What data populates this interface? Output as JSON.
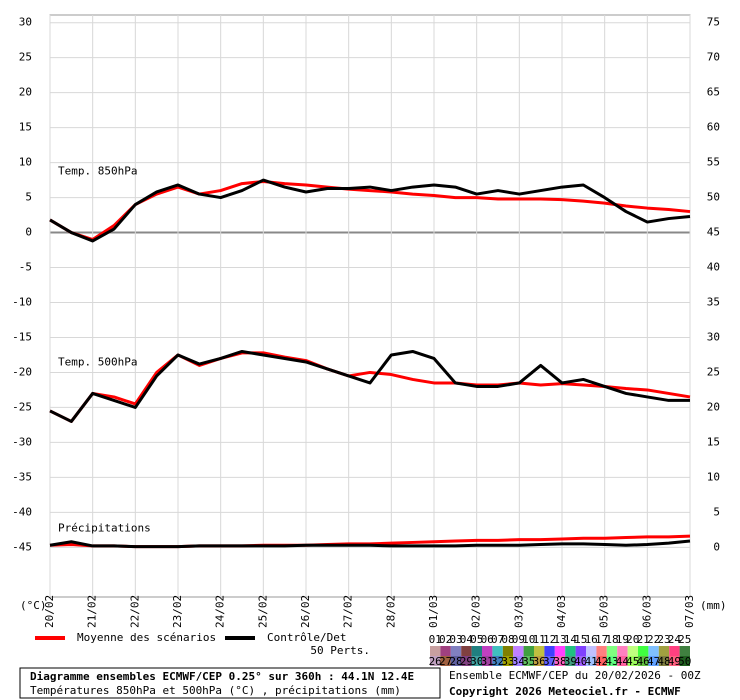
{
  "chart_data": {
    "type": "line",
    "categories": [
      "20/02",
      null,
      "21/02",
      null,
      "22/02",
      null,
      "23/02",
      null,
      "24/02",
      null,
      "25/02",
      null,
      "26/02",
      null,
      "27/02",
      null,
      "28/02",
      null,
      "01/03",
      null,
      "02/03",
      null,
      "03/03",
      null,
      "04/03",
      null,
      "05/03",
      null,
      "06/03",
      null,
      "07/03"
    ],
    "ylim": [
      -52.1,
      31.1
    ],
    "yticks": [
      30,
      25,
      20,
      15,
      10,
      5,
      0,
      -5,
      -10,
      -15,
      -20,
      -25,
      -30,
      -35,
      -40,
      -45
    ],
    "y2lim": [
      -7.1,
      76.1
    ],
    "y2ticks": [
      75,
      70,
      65,
      60,
      55,
      50,
      45,
      40,
      35,
      30,
      25,
      20,
      15,
      10,
      5,
      0
    ],
    "xlabel": "(°C)",
    "y2label": "(mm)",
    "grid": true,
    "zero_line": 0,
    "annotations": [
      "Temp. 850hPa",
      "Temp. 500hPa",
      "Précipitations"
    ],
    "series": [
      {
        "name": "Moyenne des scénarios",
        "color": "#ff0000",
        "values": [
          1.8,
          0,
          -1,
          1,
          4,
          5.5,
          6.5,
          5.5,
          6,
          7,
          7.3,
          7,
          6.8,
          6.5,
          6.2,
          6,
          5.8,
          5.5,
          5.3,
          5,
          5,
          4.8,
          4.8,
          4.8,
          4.7,
          4.5,
          4.2,
          3.8,
          3.5,
          3.3,
          3
        ]
      },
      {
        "name": "Contrôle/Det",
        "color": "#000000",
        "values": [
          1.8,
          0,
          -1.2,
          0.5,
          4,
          5.8,
          6.8,
          5.5,
          5,
          6,
          7.5,
          6.5,
          5.8,
          6.3,
          6.3,
          6.5,
          6,
          6.5,
          6.8,
          6.5,
          5.5,
          6,
          5.5,
          6,
          6.5,
          6.8,
          5,
          3,
          1.5,
          2,
          2.3
        ]
      },
      {
        "color": "#ff0000",
        "values": [
          -25.5,
          -27,
          -23,
          -23.5,
          -24.5,
          -20,
          -17.5,
          -19,
          -18,
          -17.2,
          -17.2,
          -17.8,
          -18.3,
          -19.5,
          -20.5,
          -20,
          -20.3,
          -21,
          -21.5,
          -21.5,
          -21.8,
          -21.8,
          -21.5,
          -21.8,
          -21.6,
          -21.8,
          -22,
          -22.3,
          -22.5,
          -23,
          -23.5
        ]
      },
      {
        "color": "#000000",
        "values": [
          -25.5,
          -27,
          -23,
          -24,
          -25,
          -20.5,
          -17.5,
          -18.8,
          -18,
          -17,
          -17.5,
          -18,
          -18.5,
          -19.5,
          -20.5,
          -21.5,
          -17.5,
          -17,
          -18,
          -21.5,
          -22,
          -22,
          -21.5,
          -19,
          -21.5,
          -21,
          -22,
          -23,
          -23.5,
          -24,
          -24
        ]
      },
      {
        "color": "#ff0000",
        "axis": "y2",
        "values": [
          0.3,
          0.4,
          0.2,
          0.2,
          0.1,
          0.1,
          0.1,
          0.2,
          0.2,
          0.2,
          0.3,
          0.3,
          0.3,
          0.4,
          0.5,
          0.5,
          0.6,
          0.7,
          0.8,
          0.9,
          1,
          1,
          1.1,
          1.1,
          1.2,
          1.3,
          1.3,
          1.4,
          1.5,
          1.5,
          1.6
        ]
      },
      {
        "color": "#000000",
        "axis": "y2",
        "values": [
          0.3,
          0.8,
          0.2,
          0.2,
          0.1,
          0.1,
          0.1,
          0.2,
          0.2,
          0.2,
          0.2,
          0.2,
          0.3,
          0.3,
          0.3,
          0.3,
          0.2,
          0.2,
          0.2,
          0.2,
          0.3,
          0.3,
          0.3,
          0.4,
          0.5,
          0.5,
          0.4,
          0.3,
          0.4,
          0.6,
          0.9
        ]
      }
    ],
    "perturbations": {
      "name": "50 Perts.",
      "labels": [
        "01",
        "02",
        "03",
        "04",
        "05",
        "06",
        "07",
        "08",
        "09",
        "10",
        "11",
        "12",
        "13",
        "14",
        "15",
        "16",
        "17",
        "18",
        "19",
        "20",
        "21",
        "22",
        "23",
        "24",
        "25",
        "26",
        "27",
        "28",
        "29",
        "30",
        "31",
        "32",
        "33",
        "34",
        "35",
        "36",
        "37",
        "38",
        "39",
        "40",
        "41",
        "42",
        "43",
        "44",
        "45",
        "46",
        "47",
        "48",
        "49",
        "50"
      ],
      "colors": [
        "#c8a0a0",
        "#a04080",
        "#8080c0",
        "#804040",
        "#208080",
        "#c040c0",
        "#40c0c0",
        "#808000",
        "#c080ff",
        "#40a040",
        "#c0c040",
        "#4040ff",
        "#ff40ff",
        "#20c080",
        "#8040ff",
        "#c0c0ff",
        "#ff8080",
        "#80ff80",
        "#ff80c0",
        "#c0ff80",
        "#40ff40",
        "#80c0ff",
        "#a0a040",
        "#ff4080",
        "#408040",
        "#c0a0c0",
        "#a06040",
        "#6060a0",
        "#804080",
        "#40a0a0",
        "#a040a0",
        "#4080c0",
        "#a0a000",
        "#a080ff",
        "#60c060",
        "#c0a040",
        "#6060ff",
        "#ff60c0",
        "#40a080",
        "#a060ff",
        "#a0c0ff",
        "#ff6060",
        "#60ff80",
        "#ff60a0",
        "#a0ff60",
        "#60c040",
        "#60a0ff",
        "#808040",
        "#ff6080",
        "#206020"
      ]
    },
    "footer": {
      "title": "Diagramme ensembles ECMWF/CEP 0.25° sur 360h : 44.1N 12.4E",
      "subtitle": "Températures 850hPa et 500hPa (°C) , précipitations (mm)",
      "run": "Ensemble ECMWF/CEP du 20/02/2026 - 00Z",
      "copyright": "Copyright 2026 Meteociel.fr - ECMWF"
    }
  }
}
